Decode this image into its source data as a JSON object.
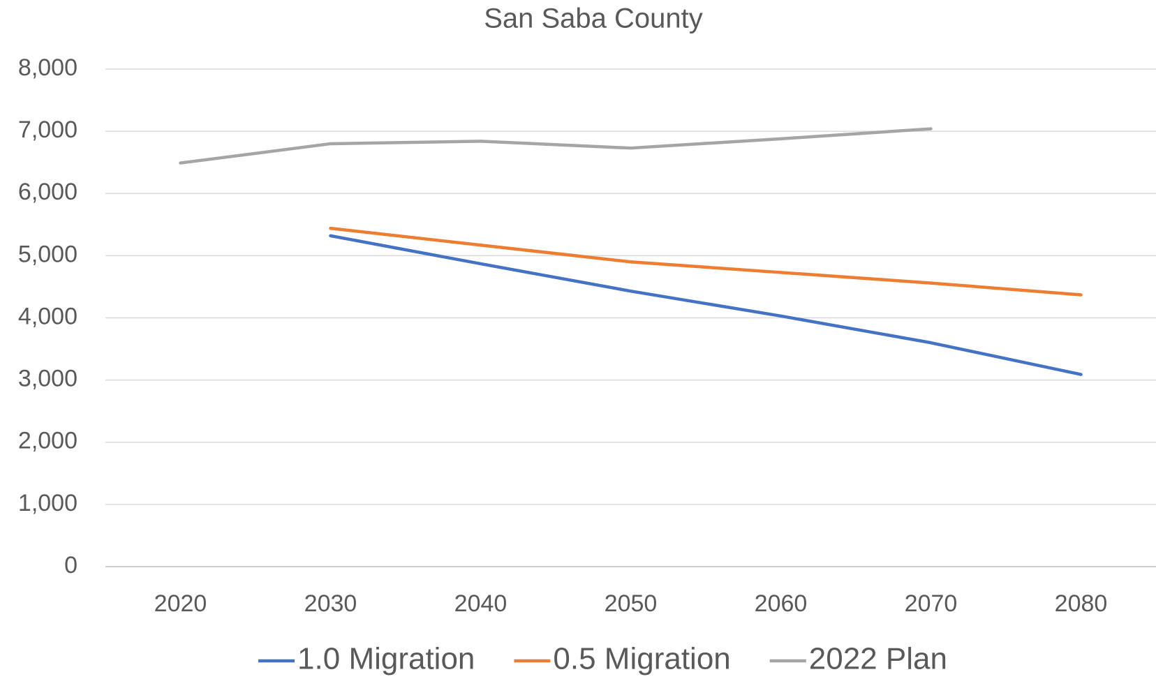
{
  "chart_data": {
    "type": "line",
    "title": "San Saba County",
    "categories": [
      "2020",
      "2030",
      "2040",
      "2050",
      "2060",
      "2070",
      "2080"
    ],
    "series": [
      {
        "name": "1.0 Migration",
        "color": "#4472c4",
        "values": [
          null,
          5320,
          4870,
          4430,
          4030,
          3600,
          3090
        ]
      },
      {
        "name": "0.5 Migration",
        "color": "#ed7d31",
        "values": [
          null,
          5440,
          5170,
          4900,
          4730,
          4560,
          4370
        ]
      },
      {
        "name": "2022 Plan",
        "color": "#a5a5a5",
        "values": [
          6490,
          6800,
          6840,
          6730,
          6880,
          7040,
          null
        ]
      }
    ],
    "ylim": [
      0,
      8000
    ],
    "yticks": [
      {
        "value": 0,
        "label": "0"
      },
      {
        "value": 1000,
        "label": "1,000"
      },
      {
        "value": 2000,
        "label": "2,000"
      },
      {
        "value": 3000,
        "label": "3,000"
      },
      {
        "value": 4000,
        "label": "4,000"
      },
      {
        "value": 5000,
        "label": "5,000"
      },
      {
        "value": 6000,
        "label": "6,000"
      },
      {
        "value": 7000,
        "label": "7,000"
      },
      {
        "value": 8000,
        "label": "8,000"
      }
    ],
    "grid": true,
    "legend": "bottom"
  }
}
